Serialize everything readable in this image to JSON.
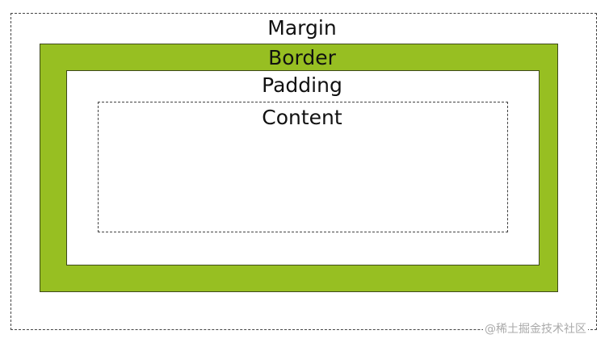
{
  "labels": {
    "margin": "Margin",
    "border": "Border",
    "padding": "Padding",
    "content": "Content"
  },
  "colors": {
    "border_fill": "#97bf22",
    "outline": "#3e4a1a",
    "dashed": "#444444"
  },
  "watermark": "@稀土掘金技术社区"
}
